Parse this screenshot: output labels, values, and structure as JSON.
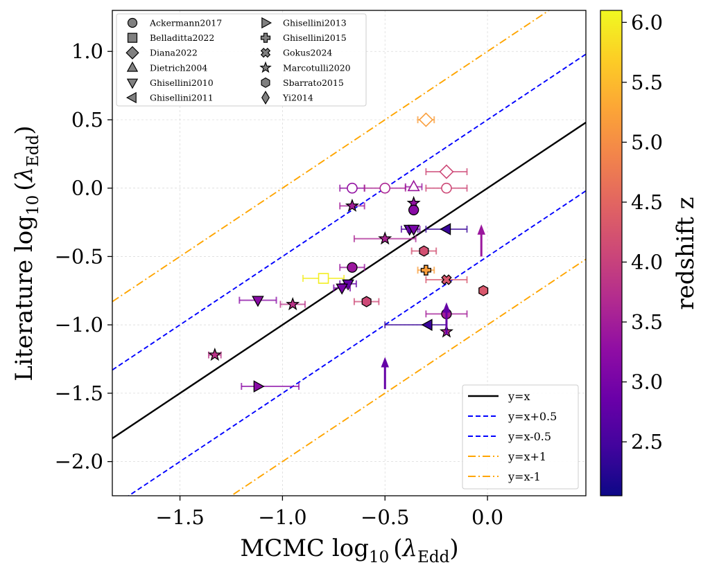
{
  "chart_data": {
    "type": "scatter",
    "xlabel": "MCMC log",
    "ylabel": "Literature log",
    "sub": "10",
    "lambda": "λ",
    "edd": "Edd",
    "paren_open": "(",
    "paren_close": ")",
    "xlim": [
      -1.83,
      0.48
    ],
    "ylim": [
      -2.25,
      1.3
    ],
    "xticks": [
      -1.5,
      -1.0,
      -0.5,
      0.0
    ],
    "xtick_labels": [
      "−1.5",
      "−1.0",
      "−0.5",
      "0.0"
    ],
    "yticks": [
      -2.0,
      -1.5,
      -1.0,
      -0.5,
      0.0,
      0.5,
      1.0
    ],
    "ytick_labels": [
      "−2.0",
      "−1.5",
      "−1.0",
      "−0.5",
      "0.0",
      "0.5",
      "1.0"
    ],
    "grid": true,
    "colorbar": {
      "label": "redshift z",
      "range": [
        2.05,
        6.1
      ],
      "ticks": [
        2.5,
        3.0,
        3.5,
        4.0,
        4.5,
        5.0,
        5.5,
        6.0
      ],
      "tick_labels": [
        "2.5",
        "3.0",
        "3.5",
        "4.0",
        "4.5",
        "5.0",
        "5.5",
        "6.0"
      ],
      "colormap": "plasma"
    },
    "reference_lines": [
      {
        "name": "y=x",
        "offset": 0,
        "color": "#000000",
        "dash": ""
      },
      {
        "name": "y=x+0.5",
        "offset": 0.5,
        "color": "#0000ff",
        "dash": "7,4"
      },
      {
        "name": "y=x-0.5",
        "offset": -0.5,
        "color": "#0000ff",
        "dash": "7,4"
      },
      {
        "name": "y=x+1",
        "offset": 1,
        "color": "#ffa500",
        "dash": "11,4,2,4"
      },
      {
        "name": "y=x-1",
        "offset": -1,
        "color": "#ffa500",
        "dash": "11,4,2,4"
      }
    ],
    "marker_legend": {
      "col1": [
        {
          "label": "Ackermann2017",
          "marker": "circle"
        },
        {
          "label": "Belladitta2022",
          "marker": "square"
        },
        {
          "label": "Diana2022",
          "marker": "diamond"
        },
        {
          "label": "Dietrich2004",
          "marker": "tri-up"
        },
        {
          "label": "Ghisellini2010",
          "marker": "tri-down"
        },
        {
          "label": "Ghisellini2011",
          "marker": "tri-left"
        }
      ],
      "col2": [
        {
          "label": "Ghisellini2013",
          "marker": "tri-right"
        },
        {
          "label": "Ghisellini2015",
          "marker": "plus"
        },
        {
          "label": "Gokus2024",
          "marker": "cross"
        },
        {
          "label": "Marcotulli2020",
          "marker": "star"
        },
        {
          "label": "Sbarrato2015",
          "marker": "hexagon"
        },
        {
          "label": "Yi2014",
          "marker": "thin-diamond"
        }
      ]
    },
    "points": [
      {
        "x": -0.66,
        "y": 0.0,
        "z": 3.3,
        "m": "circle",
        "filled": false,
        "xerr": [
          0.06,
          0.06
        ]
      },
      {
        "x": -0.5,
        "y": 0.0,
        "z": 3.6,
        "m": "circle",
        "filled": false,
        "xerr": [
          0.1,
          0.1
        ]
      },
      {
        "x": -0.2,
        "y": 0.0,
        "z": 4.1,
        "m": "circle",
        "filled": false,
        "xerr": [
          0.1,
          0.1
        ]
      },
      {
        "x": -0.36,
        "y": 0.01,
        "z": 3.4,
        "m": "tri-up",
        "filled": false,
        "xerr": [
          0.04,
          0.04
        ]
      },
      {
        "x": -0.3,
        "y": 0.5,
        "z": 5.2,
        "m": "diamond",
        "filled": false,
        "xerr": [
          0.04,
          0.04
        ]
      },
      {
        "x": -0.2,
        "y": 0.12,
        "z": 4.1,
        "m": "diamond",
        "filled": false,
        "xerr": [
          0.1,
          0.1
        ]
      },
      {
        "x": -0.66,
        "y": -0.13,
        "z": 3.5,
        "m": "star",
        "filled": true,
        "xerr": [
          0.06,
          0.06
        ]
      },
      {
        "x": -0.36,
        "y": -0.11,
        "z": 3.3,
        "m": "star",
        "filled": true,
        "xerr": [
          0,
          0
        ]
      },
      {
        "x": -0.36,
        "y": -0.16,
        "z": 3.2,
        "m": "circle",
        "filled": true,
        "xerr": [
          0,
          0
        ]
      },
      {
        "x": -0.38,
        "y": -0.3,
        "z": 2.6,
        "m": "tri-down",
        "filled": true,
        "xerr": [
          0.04,
          0.04
        ]
      },
      {
        "x": -0.36,
        "y": -0.3,
        "z": 3.0,
        "m": "tri-down",
        "filled": true,
        "xerr": [
          0.03,
          0.03
        ]
      },
      {
        "x": -0.2,
        "y": -0.3,
        "z": 2.4,
        "m": "tri-left",
        "filled": true,
        "xerr": [
          0.1,
          0.1
        ]
      },
      {
        "x": -0.5,
        "y": -0.37,
        "z": 3.6,
        "m": "star",
        "filled": true,
        "xerr": [
          0.15,
          0.15
        ]
      },
      {
        "x": -0.31,
        "y": -0.46,
        "z": 4.2,
        "m": "hexagon",
        "filled": true,
        "xerr": [
          0.06,
          0.06
        ]
      },
      {
        "x": -0.66,
        "y": -0.58,
        "z": 3.4,
        "m": "circle",
        "filled": true,
        "xerr": [
          0.06,
          0.06
        ]
      },
      {
        "x": -0.3,
        "y": -0.6,
        "z": 5.2,
        "m": "plus",
        "filled": true,
        "xerr": [
          0.04,
          0.04
        ]
      },
      {
        "x": -0.8,
        "y": -0.66,
        "z": 6.0,
        "m": "square",
        "filled": false,
        "xerr": [
          0.1,
          0.1
        ]
      },
      {
        "x": -0.2,
        "y": -0.67,
        "z": 4.3,
        "m": "cross",
        "filled": true,
        "xerr": [
          0.1,
          0.1
        ]
      },
      {
        "x": -0.68,
        "y": -0.7,
        "z": 2.8,
        "m": "tri-down",
        "filled": true,
        "xerr": [
          0.04,
          0.04
        ]
      },
      {
        "x": -0.71,
        "y": -0.73,
        "z": 3.0,
        "m": "tri-down",
        "filled": true,
        "xerr": [
          0.04,
          0.04
        ]
      },
      {
        "x": -0.02,
        "y": -0.75,
        "z": 4.3,
        "m": "hexagon",
        "filled": true,
        "xerr": [
          0.02,
          0.02
        ]
      },
      {
        "x": -1.12,
        "y": -0.82,
        "z": 3.2,
        "m": "tri-down",
        "filled": true,
        "xerr": [
          0.09,
          0.09
        ]
      },
      {
        "x": -0.59,
        "y": -0.83,
        "z": 4.1,
        "m": "hexagon",
        "filled": true,
        "xerr": [
          0.06,
          0.06
        ]
      },
      {
        "x": -0.95,
        "y": -0.85,
        "z": 3.8,
        "m": "star",
        "filled": true,
        "xerr": [
          0.06,
          0.06
        ]
      },
      {
        "x": -0.2,
        "y": -0.92,
        "z": 3.5,
        "m": "circle",
        "filled": true,
        "xerr": [
          0.1,
          0.1
        ]
      },
      {
        "x": -0.29,
        "y": -1.0,
        "z": 2.4,
        "m": "tri-left",
        "filled": true,
        "xerr": [
          0.21,
          0.09
        ]
      },
      {
        "x": -0.2,
        "y": -1.05,
        "z": 3.7,
        "m": "star",
        "filled": true,
        "xerr": [
          0,
          0
        ]
      },
      {
        "x": -1.33,
        "y": -1.22,
        "z": 3.8,
        "m": "star",
        "filled": true,
        "xerr": [
          0.03,
          0.03
        ]
      },
      {
        "x": -1.12,
        "y": -1.45,
        "z": 3.2,
        "m": "tri-right",
        "filled": true,
        "xerr": [
          0.08,
          0.2
        ]
      }
    ],
    "lower_limits": [
      {
        "x": -0.5,
        "y": -1.47,
        "z": 2.8
      },
      {
        "x": -0.03,
        "y": -0.5,
        "z": 3.4
      },
      {
        "x": -0.2,
        "y": -1.07,
        "z": 2.8
      }
    ]
  }
}
